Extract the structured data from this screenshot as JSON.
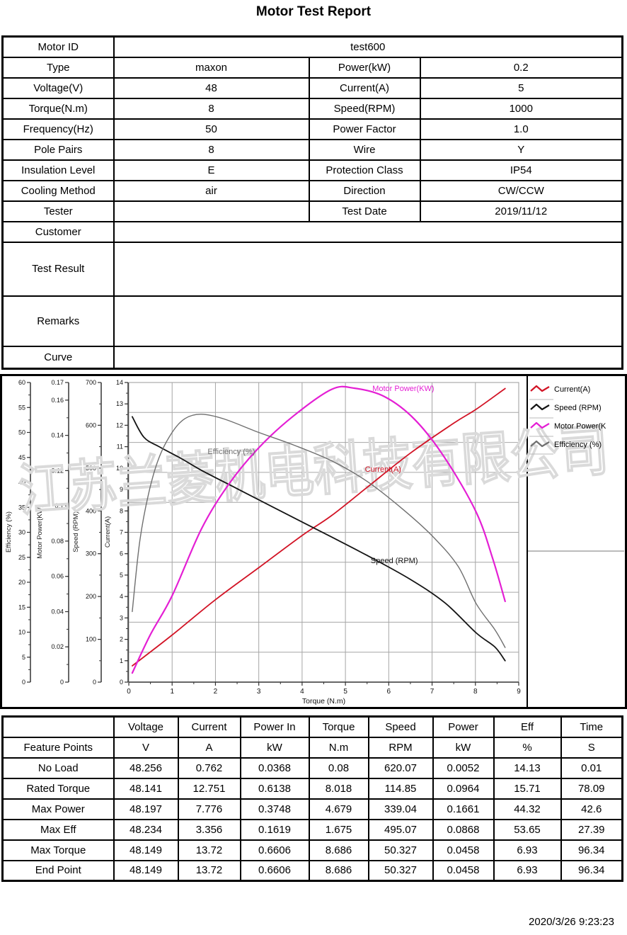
{
  "title": "Motor Test Report",
  "info_table": {
    "rows": [
      {
        "label": "Motor ID",
        "value": "test600",
        "span": true
      },
      {
        "label": "Type",
        "value": "maxon",
        "label2": "Power(kW)",
        "value2": "0.2"
      },
      {
        "label": "Voltage(V)",
        "value": "48",
        "label2": "Current(A)",
        "value2": "5"
      },
      {
        "label": "Torque(N.m)",
        "value": "8",
        "label2": "Speed(RPM)",
        "value2": "1000"
      },
      {
        "label": "Frequency(Hz)",
        "value": "50",
        "label2": "Power Factor",
        "value2": "1.0"
      },
      {
        "label": "Pole Pairs",
        "value": "8",
        "label2": "Wire",
        "value2": "Y"
      },
      {
        "label": "Insulation Level",
        "value": "E",
        "label2": "Protection Class",
        "value2": "IP54"
      },
      {
        "label": "Cooling Method",
        "value": "air",
        "label2": "Direction",
        "value2": "CW/CCW"
      },
      {
        "label": "Tester",
        "value": "",
        "label2": "Test Date",
        "value2": "2019/11/12"
      },
      {
        "label": "Customer",
        "value": "",
        "span": true
      },
      {
        "label": "Test Result",
        "value": "",
        "span": true
      },
      {
        "label": "Remarks",
        "value": "",
        "span": true
      },
      {
        "label": "Curve",
        "value": "",
        "span": true
      }
    ]
  },
  "chart_data": {
    "type": "line",
    "xlabel": "Torque (N.m)",
    "x_axis": {
      "range": [
        0,
        9
      ],
      "major_step": 1,
      "minor_step": 0.5,
      "ticks": [
        "0",
        "1",
        "2",
        "3",
        "4",
        "5",
        "6",
        "7",
        "8",
        "9"
      ]
    },
    "grid": {
      "v_divisions": 9,
      "h_divisions": 10
    },
    "watermark": "江苏兰菱机电科技有限公司",
    "axes": [
      {
        "title": "Efficiency (%)",
        "range": [
          0,
          60
        ],
        "major": [
          "0",
          "5",
          "10",
          "15",
          "20",
          "25",
          "30",
          "35",
          "40",
          "45",
          "50",
          "55",
          "60"
        ],
        "minor_step": 2.5
      },
      {
        "title": "Motor Power(KW)",
        "range": [
          0,
          0.17
        ],
        "major": [
          "0",
          "0.02",
          "0.04",
          "0.06",
          "0.08",
          "0.1",
          "0.12",
          "0.14",
          "0.16",
          "0.17"
        ],
        "minor_step": 0.01
      },
      {
        "title": "Speed (RPM)",
        "range": [
          0,
          700
        ],
        "major": [
          "0",
          "100",
          "200",
          "300",
          "400",
          "500",
          "600",
          "700"
        ],
        "minor_step": 50
      },
      {
        "title": "Current(A)",
        "range": [
          0,
          14
        ],
        "major": [
          "0",
          "1",
          "2",
          "3",
          "4",
          "5",
          "6",
          "7",
          "8",
          "9",
          "10",
          "11",
          "12",
          "13",
          "14"
        ],
        "minor_step": 0.5
      }
    ],
    "series": [
      {
        "name": "Current(A)",
        "color": "#d21325",
        "axis_max": 14,
        "width": 1.8,
        "points": [
          [
            0.08,
            0.76
          ],
          [
            1,
            2.2
          ],
          [
            2,
            3.85
          ],
          [
            3,
            5.35
          ],
          [
            4,
            6.85
          ],
          [
            4.679,
            7.78
          ],
          [
            5.5,
            9.1
          ],
          [
            6.5,
            10.7
          ],
          [
            7.5,
            12.1
          ],
          [
            8.018,
            12.75
          ],
          [
            8.686,
            13.72
          ]
        ]
      },
      {
        "name": "Speed (RPM)",
        "color": "#141414",
        "axis_max": 700,
        "width": 1.8,
        "points": [
          [
            0.08,
            620
          ],
          [
            0.35,
            572
          ],
          [
            0.7,
            550
          ],
          [
            1.2,
            523
          ],
          [
            1.675,
            495
          ],
          [
            2.5,
            452
          ],
          [
            3.5,
            400
          ],
          [
            4.679,
            339
          ],
          [
            5.5,
            296
          ],
          [
            6.5,
            240
          ],
          [
            7.3,
            185
          ],
          [
            8.018,
            115
          ],
          [
            8.45,
            82
          ],
          [
            8.686,
            50
          ]
        ]
      },
      {
        "name": "Motor Power(KW)",
        "color": "#e41fd4",
        "axis_max": 0.17,
        "width": 2.2,
        "points": [
          [
            0.08,
            0.0052
          ],
          [
            0.5,
            0.027
          ],
          [
            1,
            0.049
          ],
          [
            1.675,
            0.0868
          ],
          [
            2.3,
            0.112
          ],
          [
            3,
            0.133
          ],
          [
            3.8,
            0.151
          ],
          [
            4.679,
            0.1661
          ],
          [
            5.2,
            0.1668
          ],
          [
            5.9,
            0.162
          ],
          [
            6.6,
            0.149
          ],
          [
            7.3,
            0.127
          ],
          [
            8.018,
            0.0964
          ],
          [
            8.4,
            0.07
          ],
          [
            8.686,
            0.0458
          ]
        ]
      },
      {
        "name": "Efficiency (%)",
        "color": "#6f6f6f",
        "axis_max": 60,
        "width": 1.4,
        "points": [
          [
            0.08,
            14.13
          ],
          [
            0.25,
            28
          ],
          [
            0.45,
            37.5
          ],
          [
            0.7,
            45
          ],
          [
            1.0,
            50
          ],
          [
            1.3,
            52.8
          ],
          [
            1.675,
            53.65
          ],
          [
            2.2,
            52.7
          ],
          [
            3,
            50
          ],
          [
            3.8,
            47.5
          ],
          [
            4.679,
            44.32
          ],
          [
            5.5,
            40.2
          ],
          [
            6.3,
            34.8
          ],
          [
            7.0,
            29.3
          ],
          [
            7.6,
            23.2
          ],
          [
            8.018,
            15.71
          ],
          [
            8.45,
            10.5
          ],
          [
            8.686,
            6.93
          ]
        ]
      }
    ],
    "curve_labels": [
      {
        "text": "Motor Power(KW)",
        "color": "#e41fd4",
        "fx": 0.704,
        "fy": 0.019
      },
      {
        "text": "Efficiency (%)",
        "color": "#6f6f6f",
        "fx": 0.263,
        "fy": 0.229
      },
      {
        "text": "Current(A)",
        "color": "#d21325",
        "fx": 0.652,
        "fy": 0.288
      },
      {
        "text": "Speed (RPM)",
        "color": "#141414",
        "fx": 0.681,
        "fy": 0.593
      }
    ],
    "legend": [
      {
        "label": "Current(A)",
        "color": "#d21325"
      },
      {
        "label": "Speed (RPM)",
        "color": "#141414"
      },
      {
        "label": "Motor Power(K",
        "color": "#e41fd4"
      },
      {
        "label": "Efficiency (%)",
        "color": "#6f6f6f"
      }
    ]
  },
  "feature_table": {
    "col_headers": [
      "",
      "Voltage",
      "Current",
      "Power In",
      "Torque",
      "Speed",
      "Power",
      "Eff",
      "Time"
    ],
    "unit_row": [
      "Feature Points",
      "V",
      "A",
      "kW",
      "N.m",
      "RPM",
      "kW",
      "%",
      "S"
    ],
    "rows": [
      [
        "No Load",
        "48.256",
        "0.762",
        "0.0368",
        "0.08",
        "620.07",
        "0.0052",
        "14.13",
        "0.01"
      ],
      [
        "Rated Torque",
        "48.141",
        "12.751",
        "0.6138",
        "8.018",
        "114.85",
        "0.0964",
        "15.71",
        "78.09"
      ],
      [
        "Max Power",
        "48.197",
        "7.776",
        "0.3748",
        "4.679",
        "339.04",
        "0.1661",
        "44.32",
        "42.6"
      ],
      [
        "Max Eff",
        "48.234",
        "3.356",
        "0.1619",
        "1.675",
        "495.07",
        "0.0868",
        "53.65",
        "27.39"
      ],
      [
        "Max Torque",
        "48.149",
        "13.72",
        "0.6606",
        "8.686",
        "50.327",
        "0.0458",
        "6.93",
        "96.34"
      ],
      [
        "End Point",
        "48.149",
        "13.72",
        "0.6606",
        "8.686",
        "50.327",
        "0.0458",
        "6.93",
        "96.34"
      ]
    ]
  },
  "footer": {
    "timestamp": "2020/3/26 9:23:23"
  }
}
